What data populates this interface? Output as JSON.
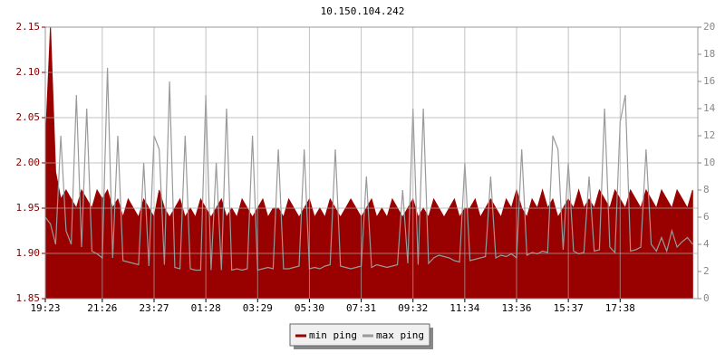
{
  "chart_data": {
    "type": "line",
    "title": "10.150.104.242",
    "categories": [
      "19:23",
      null,
      null,
      null,
      null,
      null,
      null,
      null,
      null,
      null,
      null,
      "21:26",
      null,
      null,
      null,
      null,
      null,
      null,
      null,
      null,
      null,
      "23:27",
      null,
      null,
      null,
      null,
      null,
      null,
      null,
      null,
      null,
      "01:28",
      null,
      null,
      null,
      null,
      null,
      null,
      null,
      null,
      null,
      "03:29",
      null,
      null,
      null,
      null,
      null,
      null,
      null,
      null,
      null,
      "05:30",
      null,
      null,
      null,
      null,
      null,
      null,
      null,
      null,
      null,
      "07:31",
      null,
      null,
      null,
      null,
      null,
      null,
      null,
      null,
      null,
      "09:32",
      null,
      null,
      null,
      null,
      null,
      null,
      null,
      null,
      null,
      "11:34",
      null,
      null,
      null,
      null,
      null,
      null,
      null,
      null,
      null,
      "13:36",
      null,
      null,
      null,
      null,
      null,
      null,
      null,
      null,
      null,
      "15:37",
      null,
      null,
      null,
      null,
      null,
      null,
      null,
      null,
      null,
      "17:38",
      null,
      null,
      null,
      null,
      null,
      null,
      null,
      null,
      null,
      null,
      null,
      null,
      null,
      null
    ],
    "series": [
      {
        "name": "min ping",
        "color": "#990000",
        "fill": true,
        "values": [
          2.02,
          2.15,
          1.99,
          1.96,
          1.97,
          1.96,
          1.95,
          1.97,
          1.96,
          1.95,
          1.97,
          1.96,
          1.97,
          1.95,
          1.96,
          1.94,
          1.96,
          1.95,
          1.94,
          1.96,
          1.95,
          1.94,
          1.97,
          1.95,
          1.94,
          1.95,
          1.96,
          1.94,
          1.95,
          1.94,
          1.96,
          1.95,
          1.94,
          1.95,
          1.96,
          1.94,
          1.95,
          1.94,
          1.96,
          1.95,
          1.94,
          1.95,
          1.96,
          1.94,
          1.95,
          1.95,
          1.94,
          1.96,
          1.95,
          1.94,
          1.95,
          1.96,
          1.94,
          1.95,
          1.94,
          1.96,
          1.95,
          1.94,
          1.95,
          1.96,
          1.95,
          1.94,
          1.95,
          1.96,
          1.94,
          1.95,
          1.94,
          1.96,
          1.95,
          1.94,
          1.95,
          1.96,
          1.94,
          1.95,
          1.94,
          1.96,
          1.95,
          1.94,
          1.95,
          1.96,
          1.94,
          1.95,
          1.95,
          1.96,
          1.94,
          1.95,
          1.96,
          1.95,
          1.94,
          1.96,
          1.95,
          1.97,
          1.95,
          1.94,
          1.96,
          1.95,
          1.97,
          1.95,
          1.96,
          1.94,
          1.95,
          1.96,
          1.95,
          1.97,
          1.95,
          1.96,
          1.95,
          1.97,
          1.96,
          1.95,
          1.97,
          1.96,
          1.95,
          1.97,
          1.96,
          1.95,
          1.97,
          1.96,
          1.95,
          1.97,
          1.96,
          1.95,
          1.97,
          1.96,
          1.95,
          1.97
        ]
      },
      {
        "name": "max ping",
        "color": "#999999",
        "axis": "y2",
        "values": [
          6,
          5.5,
          4,
          12,
          5,
          4,
          15,
          3.8,
          14,
          3.5,
          3.3,
          3,
          17,
          3,
          12,
          2.8,
          2.7,
          2.6,
          2.5,
          10,
          2.4,
          12,
          11,
          2.5,
          16,
          2.3,
          2.2,
          12,
          2.2,
          2.1,
          2.1,
          15,
          2.1,
          10,
          2.1,
          14,
          2.1,
          2.2,
          2.1,
          2.2,
          12,
          2.1,
          2.2,
          2.3,
          2.2,
          11,
          2.2,
          2.2,
          2.3,
          2.4,
          11,
          2.2,
          2.3,
          2.2,
          2.4,
          2.5,
          11,
          2.4,
          2.3,
          2.2,
          2.3,
          2.4,
          9,
          2.3,
          2.5,
          2.4,
          2.3,
          2.4,
          2.5,
          8,
          2.6,
          14,
          2.5,
          14,
          2.6,
          3,
          3.2,
          3.1,
          3,
          2.8,
          2.7,
          10,
          2.8,
          2.9,
          3,
          3.1,
          9,
          3,
          3.2,
          3.1,
          3.3,
          3,
          11,
          3.2,
          3.4,
          3.3,
          3.5,
          3.4,
          12,
          11,
          3.6,
          10,
          3.5,
          3.3,
          3.4,
          9,
          3.5,
          3.6,
          14,
          3.8,
          3.4,
          13,
          15,
          3.5,
          3.6,
          3.8,
          11,
          4,
          3.5,
          4.5,
          3.5,
          5,
          3.8,
          4.2,
          4.5,
          4
        ]
      }
    ],
    "ylim": [
      1.85,
      2.15
    ],
    "yticks": [
      1.85,
      {
        "value": 1.9,
        "label": "1.90"
      },
      1.95,
      {
        "value": 2,
        "label": "2.00"
      },
      2.05,
      {
        "value": 2.1,
        "label": "2.10"
      },
      2.15
    ],
    "y2lim": [
      0,
      20
    ],
    "y2ticks": [
      0,
      2,
      4,
      6,
      8,
      10,
      12,
      14,
      16,
      18,
      20
    ],
    "grid": true
  }
}
